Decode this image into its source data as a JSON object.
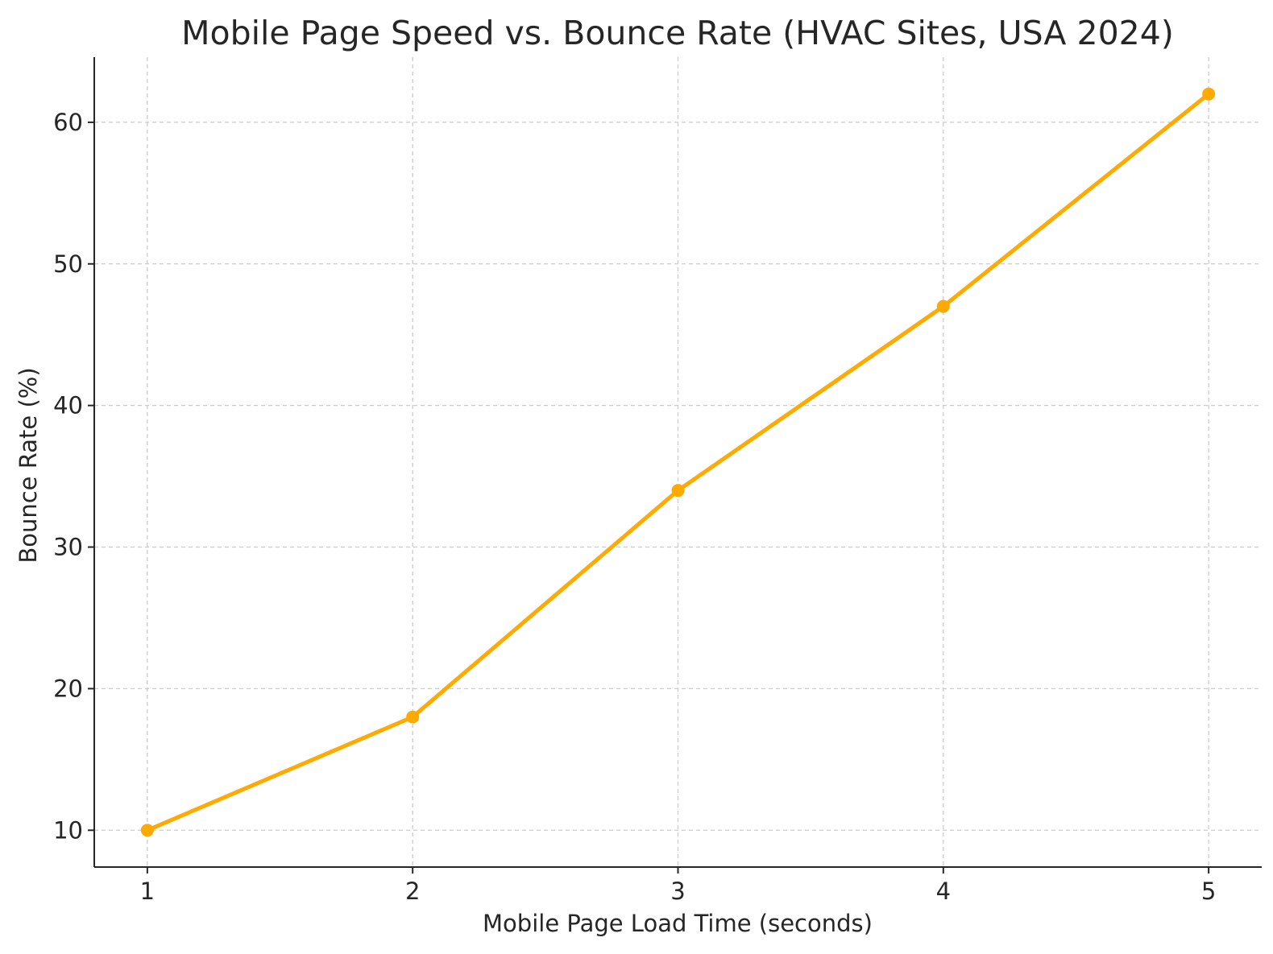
{
  "chart_data": {
    "type": "line",
    "title": "Mobile Page Speed vs. Bounce Rate (HVAC Sites, USA 2024)",
    "xlabel": "Mobile Page Load Time (seconds)",
    "ylabel": "Bounce Rate (%)",
    "x": [
      1,
      2,
      3,
      4,
      5
    ],
    "series": [
      {
        "values": [
          10,
          18,
          34,
          47,
          62
        ]
      }
    ],
    "xticks": [
      1,
      2,
      3,
      4,
      5
    ],
    "yticks": [
      10,
      20,
      30,
      40,
      50,
      60
    ],
    "xlim": [
      0.8,
      5.2
    ],
    "ylim": [
      7.4,
      64.6
    ],
    "grid": true,
    "line_color": "#ffaa00",
    "grid_color": "#cccccc",
    "axis_color": "#262626"
  }
}
